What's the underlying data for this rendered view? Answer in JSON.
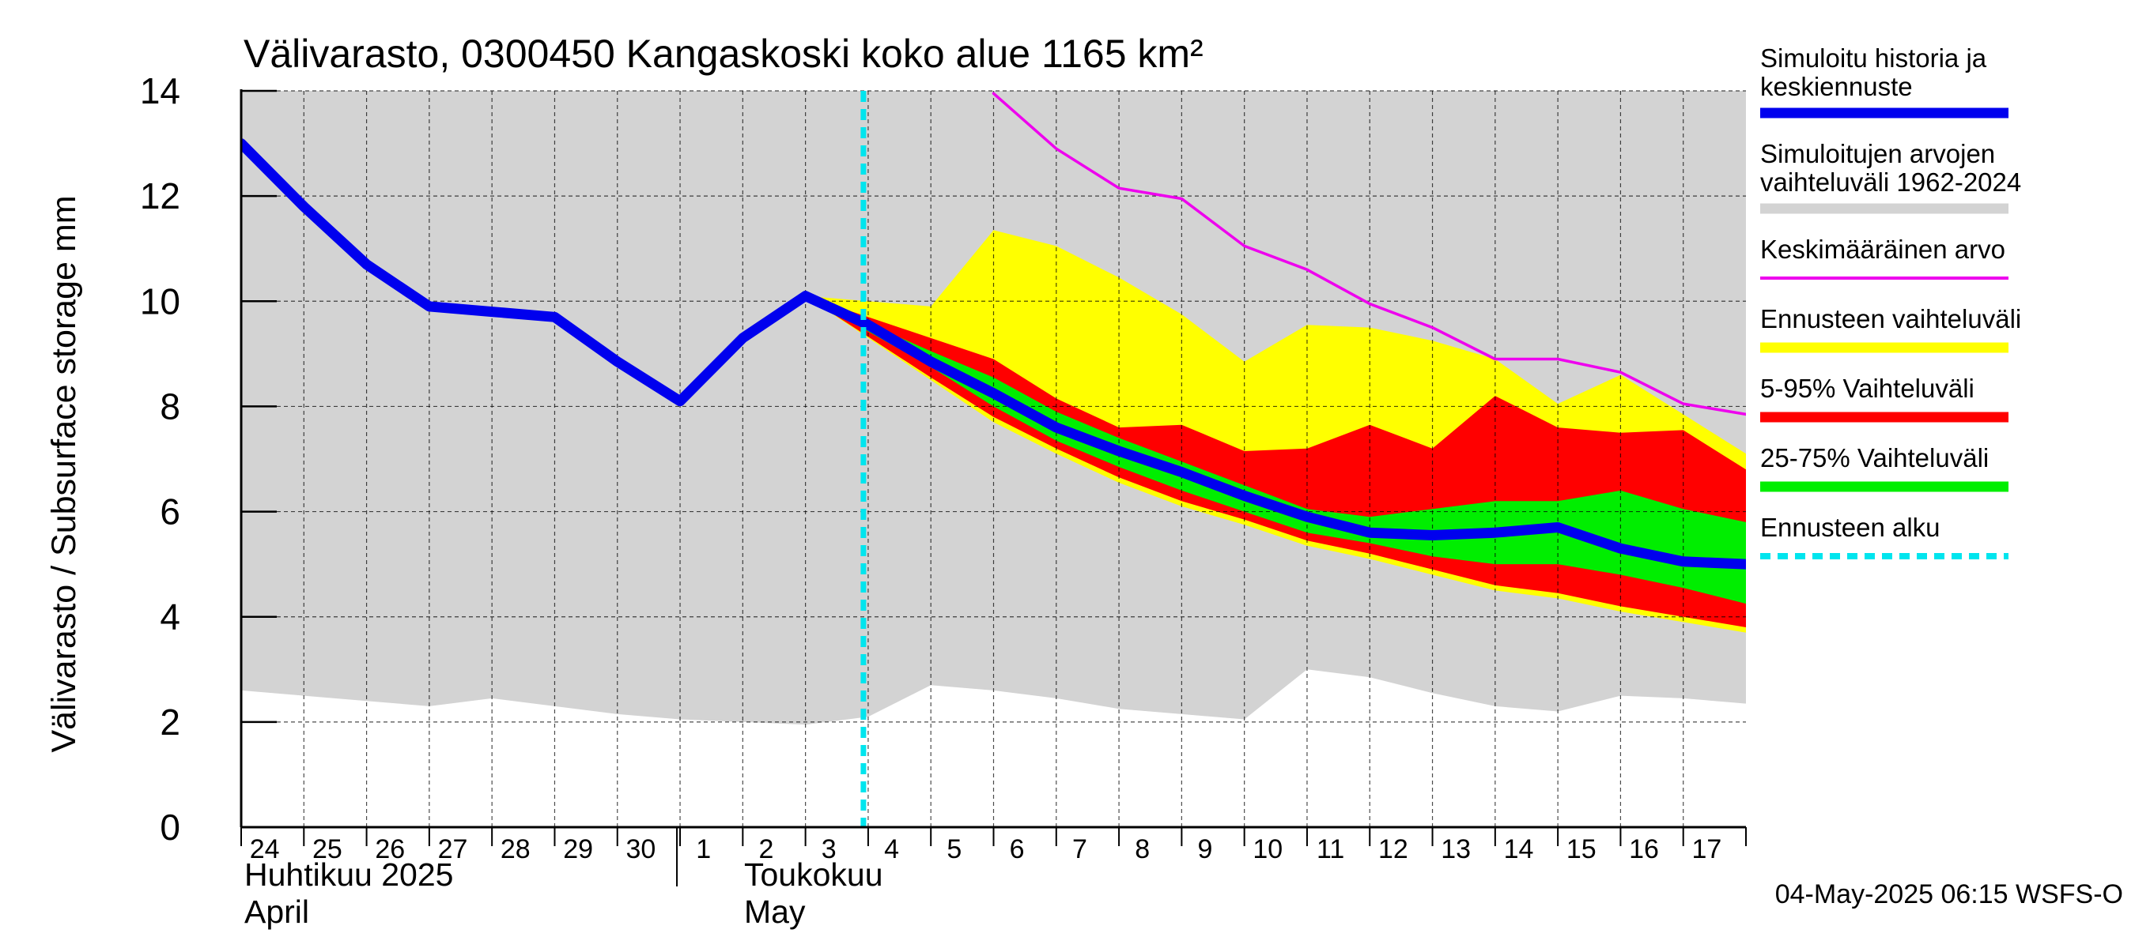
{
  "chart_data": {
    "type": "area",
    "title": "Välivarasto, 0300450 Kangaskoski koko alue 1165 km²",
    "ylabel": "Välivarasto / Subsurface storage  mm",
    "ylim": [
      0,
      14
    ],
    "yticks": [
      "0",
      "2",
      "4",
      "6",
      "8",
      "10",
      "12",
      "14"
    ],
    "x_start": "2025-04-24",
    "x_end": "2025-05-18",
    "x_ticks": [
      "24",
      "25",
      "26",
      "27",
      "28",
      "29",
      "30",
      "1",
      "2",
      "3",
      "4",
      "5",
      "6",
      "7",
      "8",
      "9",
      "10",
      "11",
      "12",
      "13",
      "14",
      "15",
      "16",
      "17"
    ],
    "month_labels": [
      {
        "line1": "Huhtikuu  2025",
        "line2": "April"
      },
      {
        "line1": "Toukokuu",
        "line2": "May"
      }
    ],
    "grid": true,
    "legend_position": "right",
    "forecast_start": "2025-05-04",
    "series": [
      {
        "name": "Simuloitujen arvojen vaihteluväli 1962-2024",
        "color": "#d3d3d3",
        "kind": "band",
        "x": [
          "2025-04-24",
          "2025-04-25",
          "2025-04-26",
          "2025-04-27",
          "2025-04-28",
          "2025-04-29",
          "2025-04-30",
          "2025-05-01",
          "2025-05-02",
          "2025-05-03",
          "2025-05-04",
          "2025-05-05",
          "2025-05-06",
          "2025-05-07",
          "2025-05-08",
          "2025-05-09",
          "2025-05-10",
          "2025-05-11",
          "2025-05-12",
          "2025-05-13",
          "2025-05-14",
          "2025-05-15",
          "2025-05-16",
          "2025-05-17",
          "2025-05-18"
        ],
        "low": [
          2.6,
          2.5,
          2.4,
          2.3,
          2.45,
          2.3,
          2.15,
          2.05,
          2.0,
          1.95,
          2.1,
          2.7,
          2.6,
          2.45,
          2.25,
          2.15,
          2.05,
          3.0,
          2.85,
          2.55,
          2.3,
          2.2,
          2.5,
          2.45,
          2.35
        ],
        "high": [
          14,
          14,
          14,
          14,
          14,
          14,
          14,
          14,
          14,
          14,
          14,
          14,
          14,
          14,
          14,
          14,
          14,
          14,
          14,
          14,
          14,
          14,
          14,
          14,
          14
        ]
      },
      {
        "name": "Ennusteen vaihteluväli",
        "color": "#ffff00",
        "kind": "band",
        "x": [
          "2025-05-03",
          "2025-05-05",
          "2025-05-06",
          "2025-05-07",
          "2025-05-08",
          "2025-05-09",
          "2025-05-10",
          "2025-05-11",
          "2025-05-12",
          "2025-05-13",
          "2025-05-14",
          "2025-05-15",
          "2025-05-16",
          "2025-05-17",
          "2025-05-18"
        ],
        "low": [
          10.1,
          8.5,
          7.7,
          7.1,
          6.55,
          6.1,
          5.75,
          5.35,
          5.1,
          4.8,
          4.5,
          4.35,
          4.1,
          3.9,
          3.7
        ],
        "high": [
          10.1,
          9.9,
          11.35,
          11.05,
          10.45,
          9.75,
          8.85,
          9.55,
          9.5,
          9.25,
          8.9,
          8.05,
          8.6,
          7.85,
          7.1
        ]
      },
      {
        "name": "5-95% Vaihteluväli",
        "color": "#ff0000",
        "kind": "band",
        "x": [
          "2025-05-03",
          "2025-05-05",
          "2025-05-06",
          "2025-05-07",
          "2025-05-08",
          "2025-05-09",
          "2025-05-10",
          "2025-05-11",
          "2025-05-12",
          "2025-05-13",
          "2025-05-14",
          "2025-05-15",
          "2025-05-16",
          "2025-05-17",
          "2025-05-18"
        ],
        "low": [
          10.1,
          8.55,
          7.8,
          7.2,
          6.65,
          6.2,
          5.85,
          5.45,
          5.2,
          4.9,
          4.6,
          4.45,
          4.2,
          4.0,
          3.8
        ],
        "high": [
          10.1,
          9.3,
          8.9,
          8.15,
          7.6,
          7.65,
          7.15,
          7.2,
          7.65,
          7.2,
          8.2,
          7.6,
          7.5,
          7.55,
          6.8
        ]
      },
      {
        "name": "25-75% Vaihteluväli",
        "color": "#00ee00",
        "kind": "band",
        "x": [
          "2025-05-03",
          "2025-05-05",
          "2025-05-06",
          "2025-05-07",
          "2025-05-08",
          "2025-05-09",
          "2025-05-10",
          "2025-05-11",
          "2025-05-12",
          "2025-05-13",
          "2025-05-14",
          "2025-05-15",
          "2025-05-16",
          "2025-05-17",
          "2025-05-18"
        ],
        "low": [
          10.1,
          8.75,
          8.0,
          7.35,
          6.85,
          6.4,
          6.0,
          5.6,
          5.4,
          5.15,
          5.0,
          5.0,
          4.8,
          4.55,
          4.25
        ],
        "high": [
          10.1,
          9.05,
          8.55,
          7.9,
          7.4,
          6.95,
          6.5,
          6.05,
          5.9,
          6.05,
          6.2,
          6.2,
          6.4,
          6.05,
          5.8
        ]
      },
      {
        "name": "Keskimääräinen arvo",
        "color": "#ee00ee",
        "kind": "line",
        "x": [
          "2025-05-06",
          "2025-05-07",
          "2025-05-08",
          "2025-05-09",
          "2025-05-10",
          "2025-05-11",
          "2025-05-12",
          "2025-05-13",
          "2025-05-14",
          "2025-05-15",
          "2025-05-16",
          "2025-05-17",
          "2025-05-18"
        ],
        "y": [
          13.95,
          12.9,
          12.15,
          11.95,
          11.05,
          10.6,
          9.95,
          9.5,
          8.9,
          8.9,
          8.65,
          8.05,
          7.85
        ]
      },
      {
        "name": "Simuloitu historia ja keskiennuste",
        "color": "#0000ee",
        "kind": "line",
        "x": [
          "2025-04-24",
          "2025-04-25",
          "2025-04-26",
          "2025-04-27",
          "2025-04-28",
          "2025-04-29",
          "2025-04-30",
          "2025-05-01",
          "2025-05-02",
          "2025-05-03",
          "2025-05-04",
          "2025-05-05",
          "2025-05-06",
          "2025-05-07",
          "2025-05-08",
          "2025-05-09",
          "2025-05-10",
          "2025-05-11",
          "2025-05-12",
          "2025-05-13",
          "2025-05-14",
          "2025-05-15",
          "2025-05-16",
          "2025-05-17",
          "2025-05-18"
        ],
        "y": [
          13.0,
          11.8,
          10.7,
          9.9,
          9.8,
          9.7,
          8.85,
          8.1,
          9.3,
          10.1,
          9.55,
          8.85,
          8.25,
          7.6,
          7.15,
          6.75,
          6.3,
          5.9,
          5.6,
          5.55,
          5.6,
          5.7,
          5.3,
          5.05,
          5.0
        ]
      }
    ],
    "legend": [
      {
        "line1": "Simuloitu historia ja",
        "line2": "keskiennuste",
        "color": "#0000ee",
        "style": "thick"
      },
      {
        "line1": "Simuloitujen arvojen",
        "line2": "vaihteluväli 1962-2024",
        "color": "#d3d3d3",
        "style": "thick"
      },
      {
        "line1": "Keskimääräinen arvo",
        "line2": "",
        "color": "#ee00ee",
        "style": "thin"
      },
      {
        "line1": "Ennusteen vaihteluväli",
        "line2": "",
        "color": "#ffff00",
        "style": "thick"
      },
      {
        "line1": "5-95% Vaihteluväli",
        "line2": "",
        "color": "#ff0000",
        "style": "thick"
      },
      {
        "line1": "25-75% Vaihteluväli",
        "line2": "",
        "color": "#00ee00",
        "style": "thick"
      },
      {
        "line1": "Ennusteen alku",
        "line2": "",
        "color": "#00e5ee",
        "style": "dashed"
      }
    ],
    "footer": "04-May-2025 06:15 WSFS-O"
  }
}
